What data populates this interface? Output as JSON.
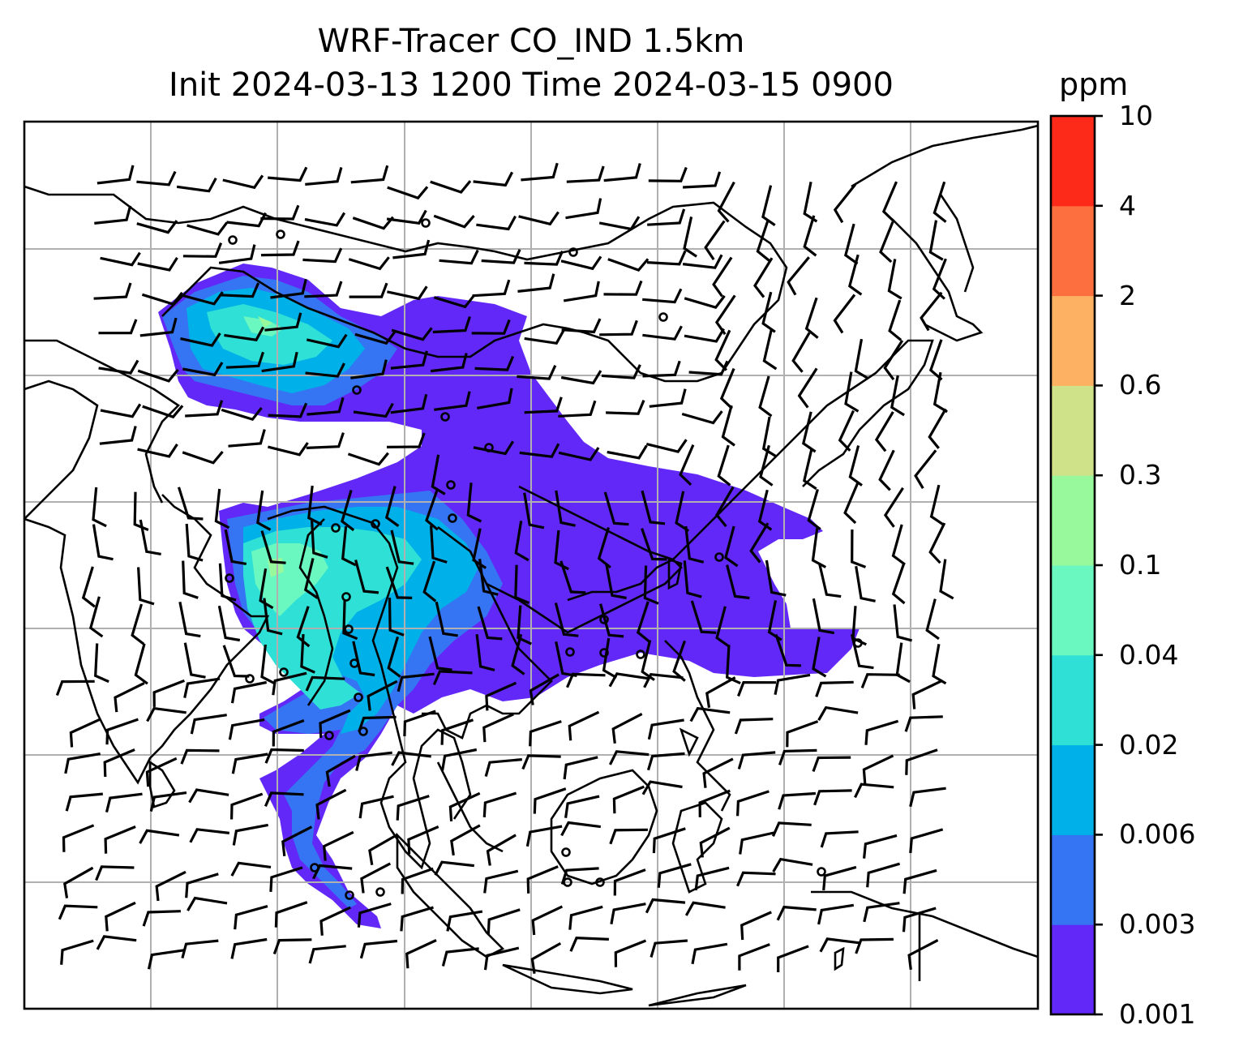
{
  "title": {
    "line1": "WRF-Tracer CO_IND 1.5km",
    "line2": "Init 2024-03-13 1200 Time 2024-03-15 0900"
  },
  "colorbar": {
    "unit": "ppm",
    "levels": [
      "0.001",
      "0.003",
      "0.006",
      "0.02",
      "0.04",
      "0.1",
      "0.3",
      "0.6",
      "2",
      "4",
      "10"
    ],
    "colors": [
      "#6228f7",
      "#3574f3",
      "#00b0e9",
      "#2fe0d6",
      "#6bf8c0",
      "#98f99c",
      "#cfe189",
      "#fdb163",
      "#fd6f3e",
      "#fd2a19"
    ]
  },
  "map": {
    "background": "#ffffff",
    "grid_color": "#b0b0b0",
    "coastline_color": "#000000"
  }
}
